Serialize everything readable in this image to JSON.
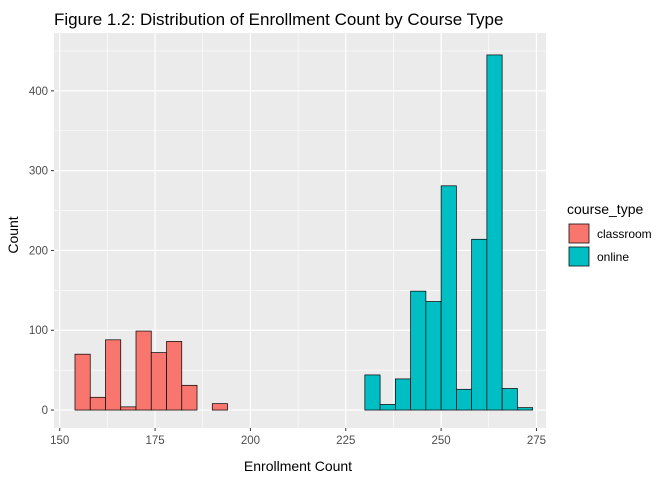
{
  "chart_data": {
    "type": "histogram",
    "title": "Figure 1.2: Distribution of Enrollment Count by Course Type",
    "xlabel": "Enrollment Count",
    "ylabel": "Count",
    "xlim": [
      148.5,
      277.5
    ],
    "ylim": [
      -22.5,
      472.5
    ],
    "x_ticks": [
      150,
      175,
      200,
      225,
      250,
      275
    ],
    "y_ticks": [
      0,
      100,
      200,
      300,
      400
    ],
    "bin_width": 4,
    "grid": true,
    "legend": {
      "title": "course_type",
      "position": "right",
      "entries": [
        {
          "label": "classroom",
          "color": "#F8766D"
        },
        {
          "label": "online",
          "color": "#00BFC4"
        }
      ]
    },
    "series": [
      {
        "name": "classroom",
        "color": "#F8766D",
        "bins": [
          {
            "x0": 154,
            "x1": 158,
            "count": 70
          },
          {
            "x0": 158,
            "x1": 162,
            "count": 16
          },
          {
            "x0": 162,
            "x1": 166,
            "count": 88
          },
          {
            "x0": 166,
            "x1": 170,
            "count": 4
          },
          {
            "x0": 170,
            "x1": 174,
            "count": 99
          },
          {
            "x0": 174,
            "x1": 178,
            "count": 72
          },
          {
            "x0": 178,
            "x1": 182,
            "count": 86
          },
          {
            "x0": 182,
            "x1": 186,
            "count": 31
          },
          {
            "x0": 190,
            "x1": 194,
            "count": 8
          }
        ]
      },
      {
        "name": "online",
        "color": "#00BFC4",
        "bins": [
          {
            "x0": 226,
            "x1": 230,
            "count": 0
          },
          {
            "x0": 230,
            "x1": 234,
            "count": 44
          },
          {
            "x0": 234,
            "x1": 238,
            "count": 7
          },
          {
            "x0": 238,
            "x1": 242,
            "count": 39
          },
          {
            "x0": 242,
            "x1": 246,
            "count": 149
          },
          {
            "x0": 246,
            "x1": 250,
            "count": 136
          },
          {
            "x0": 250,
            "x1": 254,
            "count": 281
          },
          {
            "x0": 254,
            "x1": 258,
            "count": 26
          },
          {
            "x0": 258,
            "x1": 262,
            "count": 214
          },
          {
            "x0": 262,
            "x1": 266,
            "count": 445
          },
          {
            "x0": 266,
            "x1": 270,
            "count": 27
          },
          {
            "x0": 270,
            "x1": 274,
            "count": 3
          }
        ]
      }
    ]
  }
}
